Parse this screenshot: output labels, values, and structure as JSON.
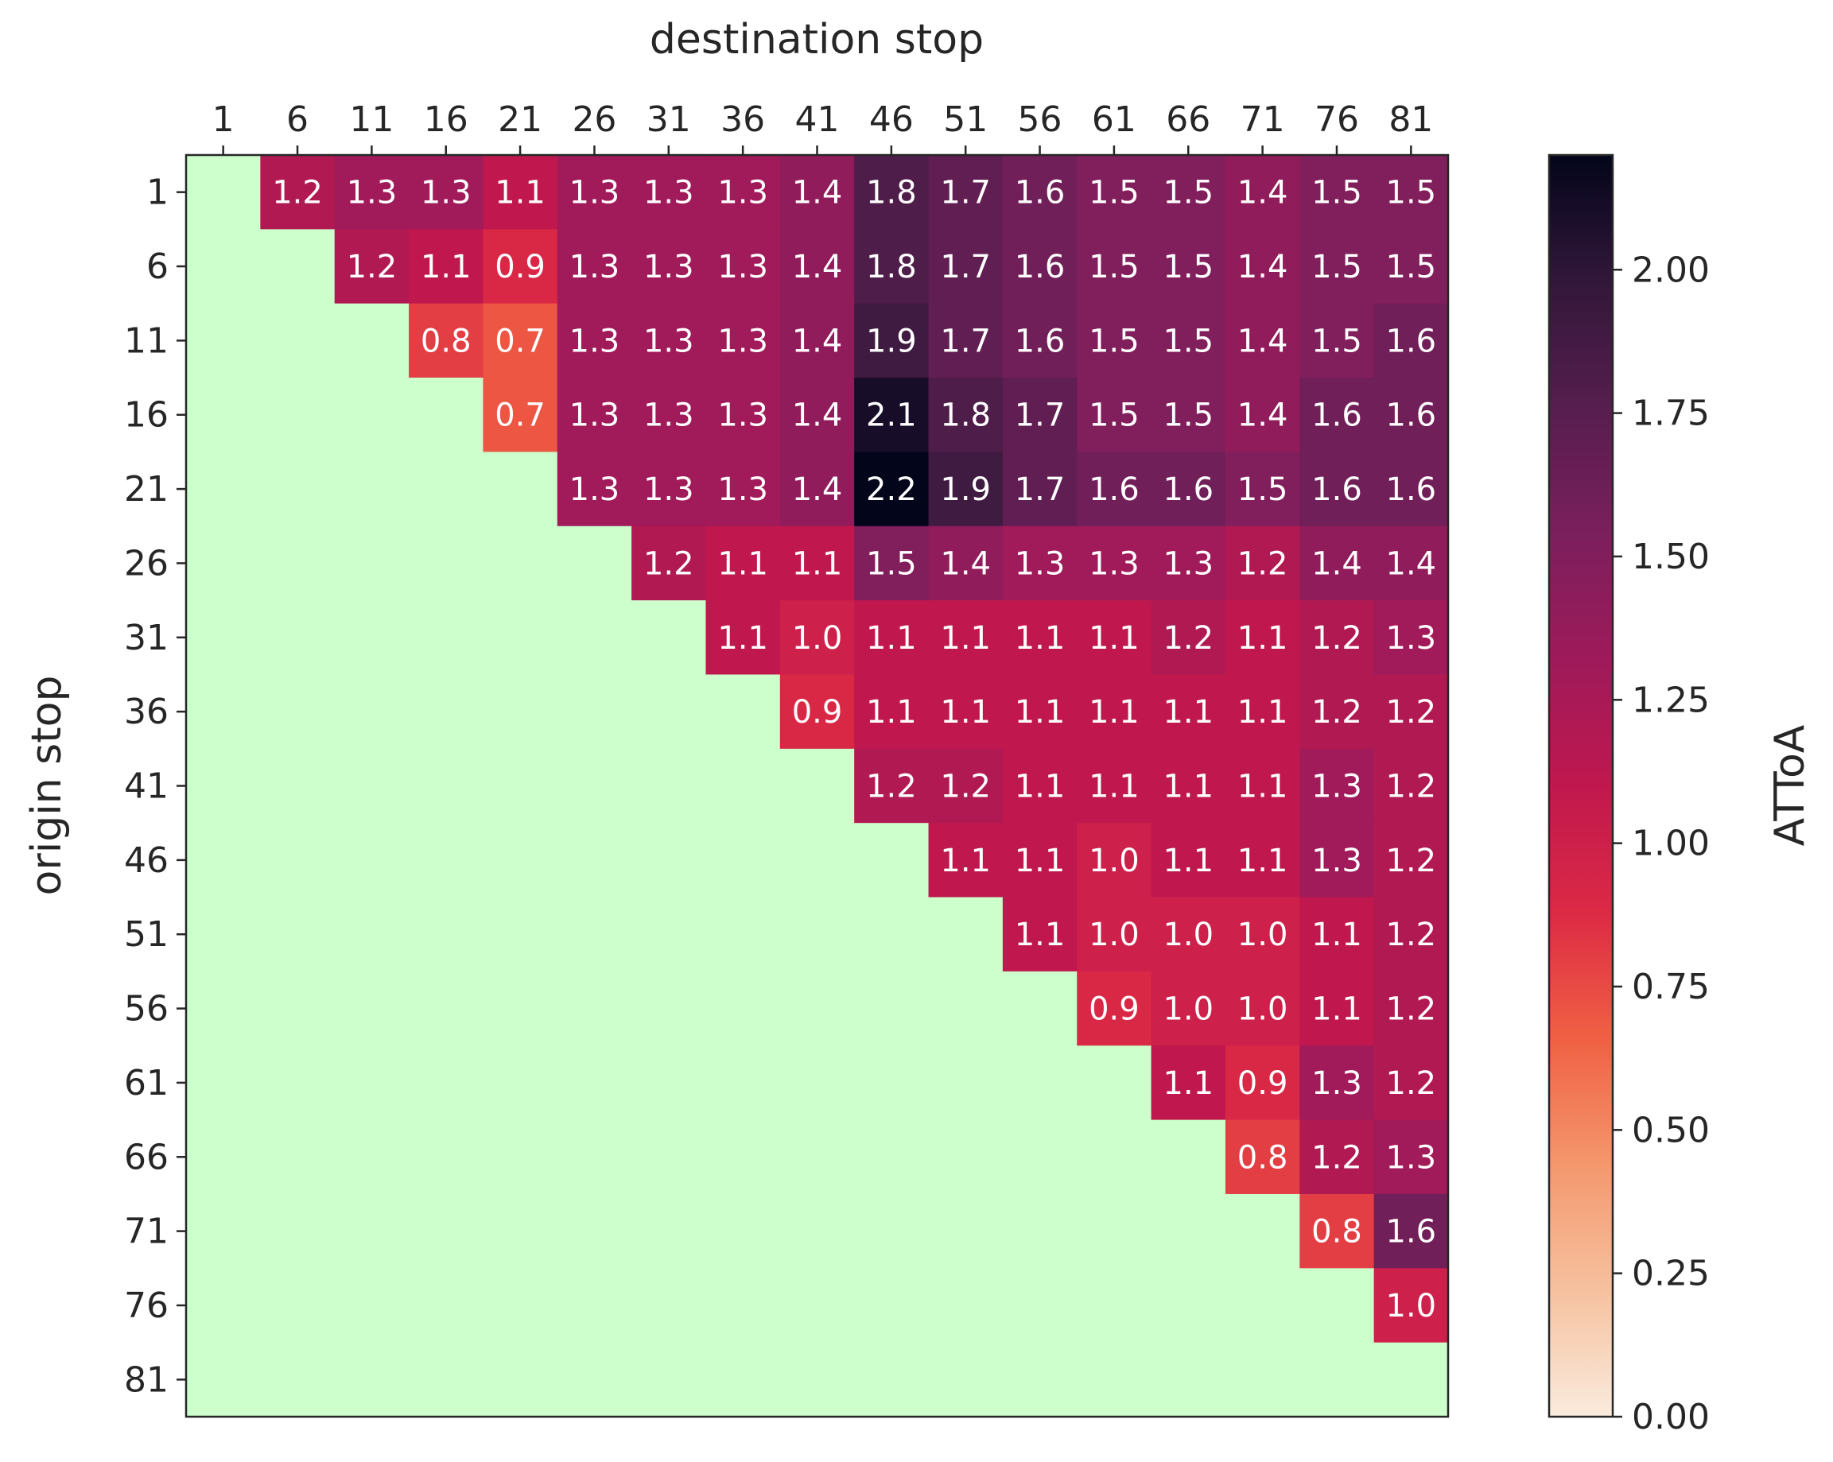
{
  "chart_data": {
    "type": "heatmap",
    "xlabel": "destination stop",
    "ylabel": "origin stop",
    "colorbar_label": "ATToA",
    "x_ticks": [
      "1",
      "6",
      "11",
      "16",
      "21",
      "26",
      "31",
      "36",
      "41",
      "46",
      "51",
      "56",
      "61",
      "66",
      "71",
      "76",
      "81"
    ],
    "y_ticks": [
      "1",
      "6",
      "11",
      "16",
      "21",
      "26",
      "31",
      "36",
      "41",
      "46",
      "51",
      "56",
      "61",
      "66",
      "71",
      "76",
      "81"
    ],
    "colorbar_range": [
      0,
      2.2
    ],
    "colorbar_ticks": [
      "0.00",
      "0.25",
      "0.50",
      "0.75",
      "1.00",
      "1.25",
      "1.50",
      "1.75",
      "2.00"
    ],
    "masked_color": "#ccffcc",
    "values": [
      [
        null,
        1.2,
        1.3,
        1.3,
        1.1,
        1.3,
        1.3,
        1.3,
        1.4,
        1.8,
        1.7,
        1.6,
        1.5,
        1.5,
        1.4,
        1.5,
        1.5
      ],
      [
        null,
        null,
        1.2,
        1.1,
        0.9,
        1.3,
        1.3,
        1.3,
        1.4,
        1.8,
        1.7,
        1.6,
        1.5,
        1.5,
        1.4,
        1.5,
        1.5
      ],
      [
        null,
        null,
        null,
        0.8,
        0.7,
        1.3,
        1.3,
        1.3,
        1.4,
        1.9,
        1.7,
        1.6,
        1.5,
        1.5,
        1.4,
        1.5,
        1.6
      ],
      [
        null,
        null,
        null,
        null,
        0.7,
        1.3,
        1.3,
        1.3,
        1.4,
        2.1,
        1.8,
        1.7,
        1.5,
        1.5,
        1.4,
        1.6,
        1.6
      ],
      [
        null,
        null,
        null,
        null,
        null,
        1.3,
        1.3,
        1.3,
        1.4,
        2.2,
        1.9,
        1.7,
        1.6,
        1.6,
        1.5,
        1.6,
        1.6
      ],
      [
        null,
        null,
        null,
        null,
        null,
        null,
        1.2,
        1.1,
        1.1,
        1.5,
        1.4,
        1.3,
        1.3,
        1.3,
        1.2,
        1.4,
        1.4
      ],
      [
        null,
        null,
        null,
        null,
        null,
        null,
        null,
        1.1,
        1.0,
        1.1,
        1.1,
        1.1,
        1.1,
        1.2,
        1.1,
        1.2,
        1.3
      ],
      [
        null,
        null,
        null,
        null,
        null,
        null,
        null,
        null,
        0.9,
        1.1,
        1.1,
        1.1,
        1.1,
        1.1,
        1.1,
        1.2,
        1.2
      ],
      [
        null,
        null,
        null,
        null,
        null,
        null,
        null,
        null,
        null,
        1.2,
        1.2,
        1.1,
        1.1,
        1.1,
        1.1,
        1.3,
        1.2
      ],
      [
        null,
        null,
        null,
        null,
        null,
        null,
        null,
        null,
        null,
        null,
        1.1,
        1.1,
        1.0,
        1.1,
        1.1,
        1.3,
        1.2
      ],
      [
        null,
        null,
        null,
        null,
        null,
        null,
        null,
        null,
        null,
        null,
        null,
        1.1,
        1.0,
        1.0,
        1.0,
        1.1,
        1.2
      ],
      [
        null,
        null,
        null,
        null,
        null,
        null,
        null,
        null,
        null,
        null,
        null,
        null,
        0.9,
        1.0,
        1.0,
        1.1,
        1.2
      ],
      [
        null,
        null,
        null,
        null,
        null,
        null,
        null,
        null,
        null,
        null,
        null,
        null,
        null,
        1.1,
        0.9,
        1.3,
        1.2
      ],
      [
        null,
        null,
        null,
        null,
        null,
        null,
        null,
        null,
        null,
        null,
        null,
        null,
        null,
        null,
        0.8,
        1.2,
        1.3
      ],
      [
        null,
        null,
        null,
        null,
        null,
        null,
        null,
        null,
        null,
        null,
        null,
        null,
        null,
        null,
        null,
        0.8,
        1.6
      ],
      [
        null,
        null,
        null,
        null,
        null,
        null,
        null,
        null,
        null,
        null,
        null,
        null,
        null,
        null,
        null,
        null,
        1.0
      ],
      [
        null,
        null,
        null,
        null,
        null,
        null,
        null,
        null,
        null,
        null,
        null,
        null,
        null,
        null,
        null,
        null,
        null
      ]
    ]
  }
}
